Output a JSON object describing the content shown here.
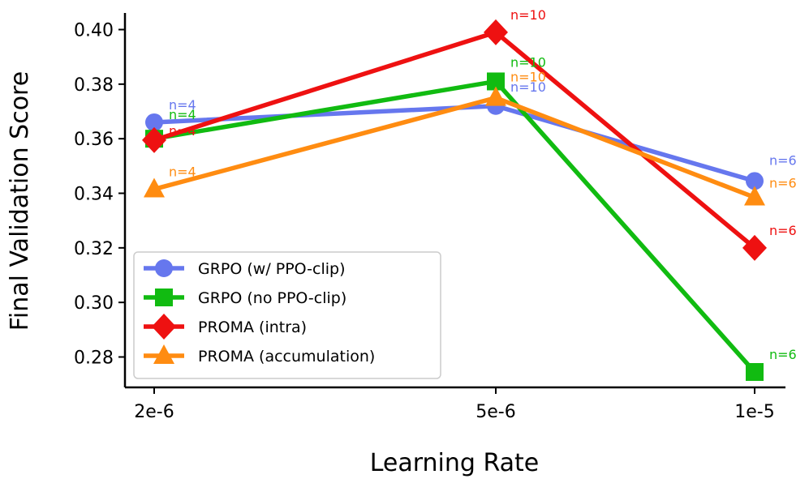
{
  "chart_data": {
    "type": "line",
    "xlabel": "Learning Rate",
    "ylabel": "Final Validation Score",
    "categories": [
      "2e-6",
      "5e-6",
      "1e-5"
    ],
    "ylim": [
      0.27,
      0.405
    ],
    "yticks": [
      0.28,
      0.3,
      0.32,
      0.34,
      0.36,
      0.38,
      0.4
    ],
    "ytick_labels": [
      "0.28",
      "0.30",
      "0.32",
      "0.34",
      "0.36",
      "0.38",
      "0.40"
    ],
    "grid": false,
    "legend_position": "lower-left",
    "series": [
      {
        "name": "GRPO (w/ PPO-clip)",
        "color": "#6677ee",
        "marker": "circle",
        "values": [
          0.366,
          0.372,
          0.3445
        ],
        "n_labels": [
          "n=4",
          "n=10",
          "n=6"
        ]
      },
      {
        "name": "GRPO (no PPO-clip)",
        "color": "#11bb11",
        "marker": "square",
        "values": [
          0.36,
          0.381,
          0.2745
        ],
        "n_labels": [
          "n=4",
          "n=10",
          "n=6"
        ]
      },
      {
        "name": "PROMA (intra)",
        "color": "#ee1111",
        "marker": "diamond",
        "values": [
          0.3595,
          0.399,
          0.32
        ],
        "n_labels": [
          "n=4",
          "n=10",
          "n=6"
        ]
      },
      {
        "name": "PROMA (accumulation)",
        "color": "#ff8c11",
        "marker": "triangle",
        "values": [
          0.3415,
          0.375,
          0.3385
        ],
        "n_labels": [
          "n=4",
          "n=10",
          "n=6"
        ]
      }
    ]
  }
}
